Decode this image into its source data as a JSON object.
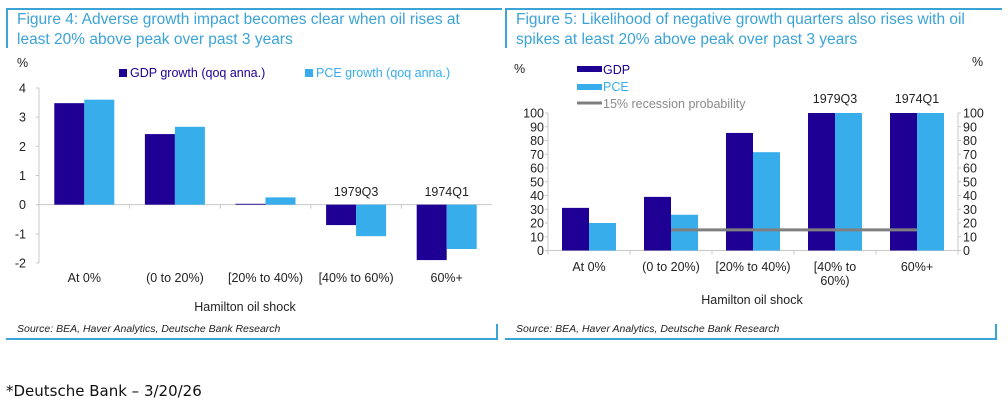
{
  "colors": {
    "gdp": "#1f0094",
    "pce": "#38adec",
    "threshold": "#7f7f7f",
    "title": "#3ba3d6",
    "axis": "#c8c8c8"
  },
  "footnote": "*Deutsche Bank – 3/20/26",
  "chart_data": [
    {
      "type": "bar",
      "title": "Figure 4: Adverse growth impact becomes clear when oil rises at least 20% above peak over past 3 years",
      "title_lines": [
        "Figure 4: Adverse growth impact becomes clear when oil rises at",
        "least 20% above peak over past 3 years"
      ],
      "xlabel": "Hamilton oil shock",
      "ylabel": "%",
      "ylim": [
        -2,
        4
      ],
      "yticks": [
        4,
        3,
        2,
        1,
        0,
        -1,
        -2
      ],
      "categories": [
        "At 0%",
        "(0 to 20%)",
        "[20% to 40%)",
        "[40% to  60%)",
        "60%+"
      ],
      "series": [
        {
          "name": "GDP growth (qoq anna.)",
          "values": [
            3.48,
            2.42,
            0.03,
            -0.7,
            -1.9
          ]
        },
        {
          "name": "PCE growth (qoq anna.)",
          "values": [
            3.6,
            2.67,
            0.25,
            -1.08,
            -1.52
          ]
        }
      ],
      "annotations": [
        {
          "category": "[40% to  60%)",
          "text": "1979Q3"
        },
        {
          "category": "60%+",
          "text": "1974Q1"
        }
      ],
      "legend": "top",
      "source": "Source: BEA, Haver Analytics, Deutsche Bank Research"
    },
    {
      "type": "bar",
      "title": "Figure 5: Likelihood of negative growth quarters also rises with oil spikes at least 20% above peak over past 3 years",
      "title_lines": [
        "Figure 5: Likelihood of negative growth quarters also rises with oil",
        "spikes at least 20% above peak over past 3 years"
      ],
      "xlabel": "Hamilton oil shock",
      "ylabel_left": "%",
      "ylabel_right": "%",
      "ylim": [
        0,
        100
      ],
      "yticks": [
        100,
        90,
        80,
        70,
        60,
        50,
        40,
        30,
        20,
        10,
        0
      ],
      "categories": [
        "At 0%",
        "(0 to 20%)",
        "[20% to 40%)",
        "[40% to|60%)",
        "60%+"
      ],
      "series": [
        {
          "name": "GDP",
          "values": [
            31,
            39,
            85.5,
            100,
            100
          ]
        },
        {
          "name": "PCE",
          "values": [
            20,
            26,
            71.5,
            100,
            100
          ]
        }
      ],
      "line_series": {
        "name": "15% recession probability",
        "value": 15,
        "from_category": "(0 to 20%)",
        "to_category": "60%+"
      },
      "annotations": [
        {
          "category": "[40% to|60%)",
          "text": "1979Q3"
        },
        {
          "category": "60%+",
          "text": "1974Q1"
        }
      ],
      "legend": "top-left",
      "source": "Source: BEA, Haver Analytics, Deutsche Bank Research"
    }
  ]
}
